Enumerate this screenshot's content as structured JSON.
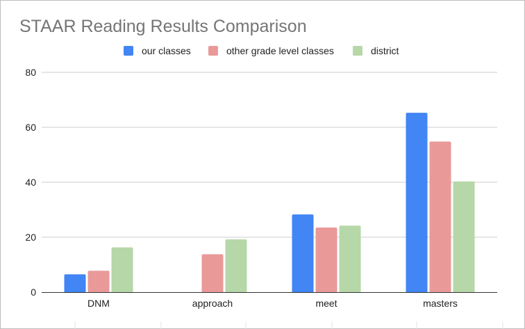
{
  "chart_data": {
    "type": "bar",
    "title": "STAAR Reading Results Comparison",
    "categories": [
      "DNM",
      "approach",
      "meet",
      "masters"
    ],
    "series": [
      {
        "name": "our classes",
        "color": "#4285f4",
        "values": [
          6.5,
          0,
          28.3,
          65.3
        ]
      },
      {
        "name": "other grade level classes",
        "color": "#ea9999",
        "values": [
          7.8,
          13.8,
          23.5,
          54.8
        ]
      },
      {
        "name": "district",
        "color": "#b6d7a8",
        "values": [
          16.3,
          19.2,
          24.2,
          40.3
        ]
      }
    ],
    "ylim": [
      0,
      80
    ],
    "yticks": [
      "0",
      "20",
      "40",
      "60",
      "80"
    ],
    "xlabel": "",
    "ylabel": "",
    "grid": true,
    "legend_position": "top"
  }
}
